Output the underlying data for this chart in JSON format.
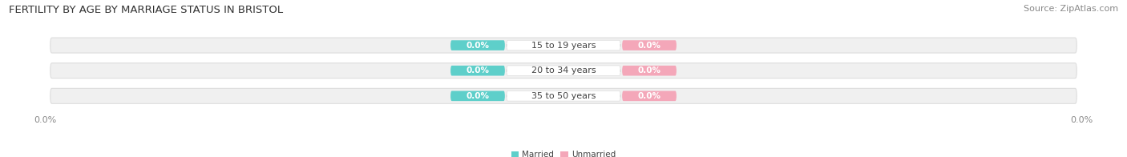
{
  "title": "FERTILITY BY AGE BY MARRIAGE STATUS IN BRISTOL",
  "source": "Source: ZipAtlas.com",
  "categories": [
    "15 to 19 years",
    "20 to 34 years",
    "35 to 50 years"
  ],
  "married_values": [
    0.0,
    0.0,
    0.0
  ],
  "unmarried_values": [
    0.0,
    0.0,
    0.0
  ],
  "married_color": "#5ECFCA",
  "unmarried_color": "#F4A7B9",
  "bar_bg_color": "#F0F0F0",
  "bar_edge_color": "#DDDDDD",
  "center_box_color": "#FFFFFF",
  "xlim_left": -100,
  "xlim_right": 100,
  "title_fontsize": 9.5,
  "source_fontsize": 8,
  "label_fontsize": 7.5,
  "cat_fontsize": 8,
  "axis_label_fontsize": 8,
  "background_color": "#FFFFFF",
  "text_color_dark": "#444444",
  "text_color_light": "#FFFFFF",
  "text_color_axis": "#888888"
}
